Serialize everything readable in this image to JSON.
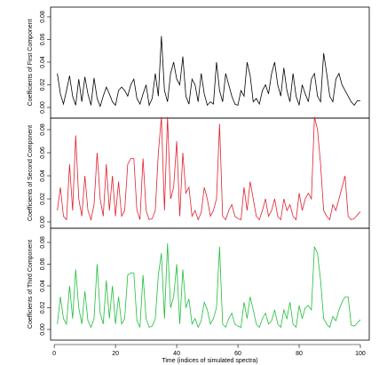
{
  "chart_data": [
    {
      "type": "line",
      "y_label": "Coefficients of First Component",
      "x": [
        1,
        2,
        3,
        4,
        5,
        6,
        7,
        8,
        9,
        10,
        11,
        12,
        13,
        14,
        15,
        16,
        17,
        18,
        19,
        20,
        21,
        22,
        23,
        24,
        25,
        26,
        27,
        28,
        29,
        30,
        31,
        32,
        33,
        34,
        35,
        36,
        37,
        38,
        39,
        40,
        41,
        42,
        43,
        44,
        45,
        46,
        47,
        48,
        49,
        50,
        51,
        52,
        53,
        54,
        55,
        56,
        57,
        58,
        59,
        60,
        61,
        62,
        63,
        64,
        65,
        66,
        67,
        68,
        69,
        70,
        71,
        72,
        73,
        74,
        75,
        76,
        77,
        78,
        79,
        80,
        81,
        82,
        83,
        84,
        85,
        86,
        87,
        88,
        89,
        90,
        91,
        92,
        93,
        94,
        95,
        96,
        97,
        98,
        99,
        100
      ],
      "values": [
        0.03,
        0.012,
        0.003,
        0.015,
        0.028,
        0.01,
        0.002,
        0.025,
        0.005,
        0.027,
        0.012,
        0.002,
        0.026,
        0.008,
        0.001,
        0.01,
        0.018,
        0.012,
        0.005,
        0.002,
        0.015,
        0.018,
        0.015,
        0.01,
        0.02,
        0.025,
        0.008,
        0.003,
        0.012,
        0.02,
        0.002,
        0.008,
        0.03,
        0.01,
        0.063,
        0.015,
        0.005,
        0.03,
        0.04,
        0.025,
        0.02,
        0.045,
        0.01,
        0.003,
        0.025,
        0.02,
        0.005,
        0.03,
        0.012,
        0.002,
        0.005,
        0.003,
        0.04,
        0.015,
        0.005,
        0.03,
        0.02,
        0.01,
        0.003,
        0.002,
        0.015,
        0.01,
        0.04,
        0.028,
        0.005,
        0.008,
        0.003,
        0.015,
        0.02,
        0.012,
        0.03,
        0.04,
        0.02,
        0.01,
        0.035,
        0.015,
        0.005,
        0.03,
        0.01,
        0.002,
        0.02,
        0.012,
        0.005,
        0.025,
        0.03,
        0.01,
        0.005,
        0.048,
        0.03,
        0.01,
        0.005,
        0.025,
        0.03,
        0.02,
        0.015,
        0.01,
        0.005,
        0.002,
        0.006,
        0.006
      ],
      "color": "#000000",
      "xlim": [
        -1.2,
        102.9
      ],
      "ylim": [
        -0.0094,
        0.0886
      ],
      "yticks": [
        {
          "value": 0,
          "label": "0.00"
        },
        {
          "value": 0.02,
          "label": "0.02"
        },
        {
          "value": 0.04,
          "label": "0.04"
        },
        {
          "value": 0.06,
          "label": "0.06"
        },
        {
          "value": 0.08,
          "label": "0.08"
        }
      ]
    },
    {
      "type": "line",
      "y_label": "Coefficients of Second Component",
      "x": [
        1,
        2,
        3,
        4,
        5,
        6,
        7,
        8,
        9,
        10,
        11,
        12,
        13,
        14,
        15,
        16,
        17,
        18,
        19,
        20,
        21,
        22,
        23,
        24,
        25,
        26,
        27,
        28,
        29,
        30,
        31,
        32,
        33,
        34,
        35,
        36,
        37,
        38,
        39,
        40,
        41,
        42,
        43,
        44,
        45,
        46,
        47,
        48,
        49,
        50,
        51,
        52,
        53,
        54,
        55,
        56,
        57,
        58,
        59,
        60,
        61,
        62,
        63,
        64,
        65,
        66,
        67,
        68,
        69,
        70,
        71,
        72,
        73,
        74,
        75,
        76,
        77,
        78,
        79,
        80,
        81,
        82,
        83,
        84,
        85,
        86,
        87,
        88,
        89,
        90,
        91,
        92,
        93,
        94,
        95,
        96,
        97,
        98,
        99,
        100
      ],
      "values": [
        0.01,
        0.03,
        0.005,
        0.002,
        0.05,
        0.01,
        0.075,
        0.02,
        0.005,
        0.04,
        0.01,
        0.002,
        0.015,
        0.06,
        0.02,
        0.005,
        0.05,
        0.01,
        0.04,
        0.005,
        0.035,
        0.005,
        0.01,
        0.05,
        0.055,
        0.055,
        0.01,
        0.002,
        0.055,
        0.01,
        0.002,
        0.003,
        0.01,
        0.06,
        0.091,
        0.01,
        0.091,
        0.02,
        0.03,
        0.07,
        0.005,
        0.06,
        0.025,
        0.03,
        0.005,
        0.01,
        0.002,
        0.008,
        0.03,
        0.02,
        0.005,
        0.01,
        0.02,
        0.085,
        0.005,
        0.002,
        0.01,
        0.015,
        0.005,
        0.003,
        0.002,
        0.03,
        0.01,
        0.035,
        0.02,
        0.005,
        0.002,
        0.01,
        0.02,
        0.005,
        0.01,
        0.02,
        0.005,
        0.002,
        0.02,
        0.01,
        0.015,
        0.005,
        0.002,
        0.025,
        0.01,
        0.02,
        0.025,
        0.02,
        0.091,
        0.08,
        0.05,
        0.01,
        0.005,
        0.002,
        0.015,
        0.01,
        0.02,
        0.03,
        0.04,
        0.005,
        0.002,
        0.003,
        0.006,
        0.009
      ],
      "color": "#e0202e",
      "xlim": [
        -1.2,
        102.9
      ],
      "ylim": [
        -0.0054,
        0.09
      ],
      "yticks": [
        {
          "value": 0,
          "label": "0.00"
        },
        {
          "value": 0.02,
          "label": "0.02"
        },
        {
          "value": 0.04,
          "label": "0.04"
        },
        {
          "value": 0.06,
          "label": "0.06"
        },
        {
          "value": 0.08,
          "label": "0.08"
        }
      ]
    },
    {
      "type": "line",
      "y_label": "Coefficients of Third Component",
      "x_label": "Time (indices of simulated spectra)",
      "x": [
        1,
        2,
        3,
        4,
        5,
        6,
        7,
        8,
        9,
        10,
        11,
        12,
        13,
        14,
        15,
        16,
        17,
        18,
        19,
        20,
        21,
        22,
        23,
        24,
        25,
        26,
        27,
        28,
        29,
        30,
        31,
        32,
        33,
        34,
        35,
        36,
        37,
        38,
        39,
        40,
        41,
        42,
        43,
        44,
        45,
        46,
        47,
        48,
        49,
        50,
        51,
        52,
        53,
        54,
        55,
        56,
        57,
        58,
        59,
        60,
        61,
        62,
        63,
        64,
        65,
        66,
        67,
        68,
        69,
        70,
        71,
        72,
        73,
        74,
        75,
        76,
        77,
        78,
        79,
        80,
        81,
        82,
        83,
        84,
        85,
        86,
        87,
        88,
        89,
        90,
        91,
        92,
        93,
        94,
        95,
        96,
        97,
        98,
        99,
        100
      ],
      "values": [
        0.005,
        0.03,
        0.01,
        0.005,
        0.04,
        0.01,
        0.055,
        0.02,
        0.005,
        0.035,
        0.008,
        0.002,
        0.01,
        0.06,
        0.015,
        0.005,
        0.045,
        0.01,
        0.04,
        0.005,
        0.03,
        0.005,
        0.01,
        0.05,
        0.052,
        0.052,
        0.008,
        0.002,
        0.05,
        0.01,
        0.002,
        0.003,
        0.01,
        0.05,
        0.07,
        0.01,
        0.079,
        0.02,
        0.03,
        0.06,
        0.005,
        0.055,
        0.02,
        0.028,
        0.005,
        0.01,
        0.002,
        0.008,
        0.025,
        0.018,
        0.005,
        0.01,
        0.02,
        0.076,
        0.005,
        0.002,
        0.01,
        0.015,
        0.005,
        0.003,
        0.002,
        0.025,
        0.01,
        0.03,
        0.018,
        0.005,
        0.002,
        0.01,
        0.015,
        0.005,
        0.008,
        0.018,
        0.005,
        0.002,
        0.018,
        0.01,
        0.025,
        0.005,
        0.002,
        0.022,
        0.01,
        0.02,
        0.022,
        0.018,
        0.076,
        0.07,
        0.045,
        0.01,
        0.005,
        0.002,
        0.012,
        0.008,
        0.018,
        0.025,
        0.03,
        0.03,
        0.004,
        0.003,
        0.006,
        0.009
      ],
      "color": "#1fbf3a",
      "xlim": [
        -1.2,
        102.9
      ],
      "ylim": [
        -0.0098,
        0.093
      ],
      "xticks": [
        0,
        20,
        40,
        60,
        80,
        100
      ],
      "yticks": [
        {
          "value": 0,
          "label": "0.00"
        },
        {
          "value": 0.02,
          "label": "0.02"
        },
        {
          "value": 0.04,
          "label": "0.04"
        },
        {
          "value": 0.06,
          "label": "0.06"
        },
        {
          "value": 0.08,
          "label": "0.08"
        }
      ]
    }
  ]
}
